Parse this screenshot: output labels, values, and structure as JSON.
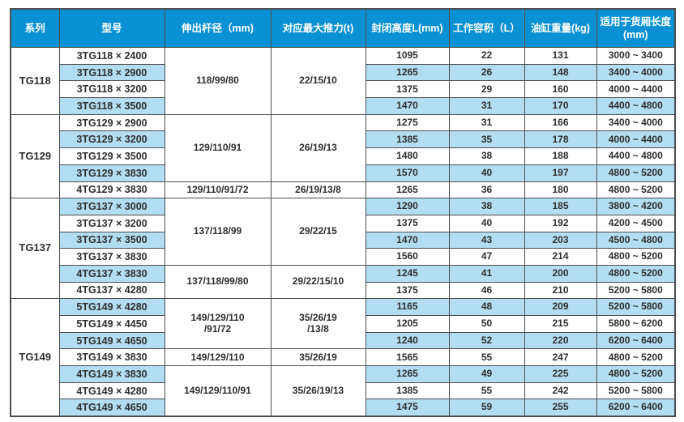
{
  "colors": {
    "page_bg": "#ffffff",
    "header_bg": "#0a91d4",
    "header_text": "#ffffff",
    "stripe_bg": "#b2ddf2",
    "row_bg": "#ffffff",
    "border": "#4e4e4e",
    "cell_text": "#2f2f2f"
  },
  "table": {
    "columns": [
      {
        "key": "series",
        "label": "系列"
      },
      {
        "key": "model",
        "label": "型号"
      },
      {
        "key": "rod",
        "label": "伸出杆径（mm)"
      },
      {
        "key": "thrust",
        "label": "对应最大推力(t)"
      },
      {
        "key": "height",
        "label": "封闭高度L(mm)"
      },
      {
        "key": "volume",
        "label": "工作容积（L）"
      },
      {
        "key": "weight",
        "label": "油缸重量(kg)"
      },
      {
        "key": "range",
        "label": "适用于货厢长度\n(mm)"
      }
    ],
    "rows": [
      [
        {
          "col": "series",
          "text": "TG118",
          "rowspan": 4
        },
        {
          "col": "model",
          "text": "3TG118 × 2400"
        },
        {
          "col": "rod",
          "text": "118/99/80",
          "rowspan": 4
        },
        {
          "col": "thrust",
          "text": "22/15/10",
          "rowspan": 4
        },
        {
          "col": "height",
          "text": "1095"
        },
        {
          "col": "volume",
          "text": "22"
        },
        {
          "col": "weight",
          "text": "131"
        },
        {
          "col": "range",
          "text": "3000 ~ 3400"
        }
      ],
      [
        {
          "col": "model",
          "text": "3TG118 × 2900"
        },
        {
          "col": "height",
          "text": "1265"
        },
        {
          "col": "volume",
          "text": "26"
        },
        {
          "col": "weight",
          "text": "148"
        },
        {
          "col": "range",
          "text": "3400 ~ 4000"
        }
      ],
      [
        {
          "col": "model",
          "text": "3TG118 × 3200"
        },
        {
          "col": "height",
          "text": "1375"
        },
        {
          "col": "volume",
          "text": "29"
        },
        {
          "col": "weight",
          "text": "160"
        },
        {
          "col": "range",
          "text": "4000 ~ 4400"
        }
      ],
      [
        {
          "col": "model",
          "text": "3TG118 × 3500"
        },
        {
          "col": "height",
          "text": "1470"
        },
        {
          "col": "volume",
          "text": "31"
        },
        {
          "col": "weight",
          "text": "170"
        },
        {
          "col": "range",
          "text": "4400 ~ 4800"
        }
      ],
      [
        {
          "col": "series",
          "text": "TG129",
          "rowspan": 5
        },
        {
          "col": "model",
          "text": "3TG129 × 2900"
        },
        {
          "col": "rod",
          "text": "129/110/91",
          "rowspan": 4
        },
        {
          "col": "thrust",
          "text": "26/19/13",
          "rowspan": 4
        },
        {
          "col": "height",
          "text": "1275"
        },
        {
          "col": "volume",
          "text": "31"
        },
        {
          "col": "weight",
          "text": "166"
        },
        {
          "col": "range",
          "text": "3400 ~ 4000"
        }
      ],
      [
        {
          "col": "model",
          "text": "3TG129 × 3200"
        },
        {
          "col": "height",
          "text": "1385"
        },
        {
          "col": "volume",
          "text": "35"
        },
        {
          "col": "weight",
          "text": "178"
        },
        {
          "col": "range",
          "text": "4000 ~ 4400"
        }
      ],
      [
        {
          "col": "model",
          "text": "3TG129 × 3500"
        },
        {
          "col": "height",
          "text": "1480"
        },
        {
          "col": "volume",
          "text": "38"
        },
        {
          "col": "weight",
          "text": "188"
        },
        {
          "col": "range",
          "text": "4400 ~ 4800"
        }
      ],
      [
        {
          "col": "model",
          "text": "3TG129 × 3830"
        },
        {
          "col": "height",
          "text": "1570"
        },
        {
          "col": "volume",
          "text": "40"
        },
        {
          "col": "weight",
          "text": "197"
        },
        {
          "col": "range",
          "text": "4800 ~ 5200"
        }
      ],
      [
        {
          "col": "model",
          "text": "4TG129 × 3830"
        },
        {
          "col": "rod",
          "text": "129/110/91/72"
        },
        {
          "col": "thrust",
          "text": "26/19/13/8"
        },
        {
          "col": "height",
          "text": "1265"
        },
        {
          "col": "volume",
          "text": "36"
        },
        {
          "col": "weight",
          "text": "180"
        },
        {
          "col": "range",
          "text": "4800 ~ 5200"
        }
      ],
      [
        {
          "col": "series",
          "text": "TG137",
          "rowspan": 6
        },
        {
          "col": "model",
          "text": "3TG137 × 3000"
        },
        {
          "col": "rod",
          "text": "137/118/99",
          "rowspan": 4
        },
        {
          "col": "thrust",
          "text": "29/22/15",
          "rowspan": 4
        },
        {
          "col": "height",
          "text": "1290"
        },
        {
          "col": "volume",
          "text": "38"
        },
        {
          "col": "weight",
          "text": "185"
        },
        {
          "col": "range",
          "text": "3800 ~ 4200"
        }
      ],
      [
        {
          "col": "model",
          "text": "3TG137 × 3200"
        },
        {
          "col": "height",
          "text": "1375"
        },
        {
          "col": "volume",
          "text": "40"
        },
        {
          "col": "weight",
          "text": "192"
        },
        {
          "col": "range",
          "text": "4200 ~ 4500"
        }
      ],
      [
        {
          "col": "model",
          "text": "3TG137 × 3500"
        },
        {
          "col": "height",
          "text": "1470"
        },
        {
          "col": "volume",
          "text": "43"
        },
        {
          "col": "weight",
          "text": "203"
        },
        {
          "col": "range",
          "text": "4500 ~ 4800"
        }
      ],
      [
        {
          "col": "model",
          "text": "3TG137 × 3830"
        },
        {
          "col": "height",
          "text": "1560"
        },
        {
          "col": "volume",
          "text": "47"
        },
        {
          "col": "weight",
          "text": "214"
        },
        {
          "col": "range",
          "text": "4800 ~ 5200"
        }
      ],
      [
        {
          "col": "model",
          "text": "4TG137 × 3830"
        },
        {
          "col": "rod",
          "text": "137/118/99/80",
          "rowspan": 2
        },
        {
          "col": "thrust",
          "text": "29/22/15/10",
          "rowspan": 2
        },
        {
          "col": "height",
          "text": "1245"
        },
        {
          "col": "volume",
          "text": "41"
        },
        {
          "col": "weight",
          "text": "200"
        },
        {
          "col": "range",
          "text": "4800 ~ 5200"
        }
      ],
      [
        {
          "col": "model",
          "text": "4TG137 × 4280"
        },
        {
          "col": "height",
          "text": "1375"
        },
        {
          "col": "volume",
          "text": "46"
        },
        {
          "col": "weight",
          "text": "210"
        },
        {
          "col": "range",
          "text": "5200 ~ 5800"
        }
      ],
      [
        {
          "col": "series",
          "text": "TG149",
          "rowspan": 7
        },
        {
          "col": "model",
          "text": "5TG149 × 4280"
        },
        {
          "col": "rod",
          "text": "149/129/110\n/91/72",
          "rowspan": 3
        },
        {
          "col": "thrust",
          "text": "35/26/19\n/13/8",
          "rowspan": 3
        },
        {
          "col": "height",
          "text": "1165"
        },
        {
          "col": "volume",
          "text": "48"
        },
        {
          "col": "weight",
          "text": "209"
        },
        {
          "col": "range",
          "text": "5200 ~ 5800"
        }
      ],
      [
        {
          "col": "model",
          "text": "5TG149 × 4450"
        },
        {
          "col": "height",
          "text": "1205"
        },
        {
          "col": "volume",
          "text": "50"
        },
        {
          "col": "weight",
          "text": "215"
        },
        {
          "col": "range",
          "text": "5800 ~ 6200"
        }
      ],
      [
        {
          "col": "model",
          "text": "5TG149 × 4650"
        },
        {
          "col": "height",
          "text": "1240"
        },
        {
          "col": "volume",
          "text": "52"
        },
        {
          "col": "weight",
          "text": "220"
        },
        {
          "col": "range",
          "text": "6200 ~ 6400"
        }
      ],
      [
        {
          "col": "model",
          "text": "3TG149 × 3830"
        },
        {
          "col": "rod",
          "text": "149/129/110"
        },
        {
          "col": "thrust",
          "text": "35/26/19"
        },
        {
          "col": "height",
          "text": "1565"
        },
        {
          "col": "volume",
          "text": "55"
        },
        {
          "col": "weight",
          "text": "247"
        },
        {
          "col": "range",
          "text": "4800 ~ 5200"
        }
      ],
      [
        {
          "col": "model",
          "text": "4TG149 × 3830"
        },
        {
          "col": "rod",
          "text": "149/129/110/91",
          "rowspan": 3
        },
        {
          "col": "thrust",
          "text": "35/26/19/13",
          "rowspan": 3
        },
        {
          "col": "height",
          "text": "1265"
        },
        {
          "col": "volume",
          "text": "49"
        },
        {
          "col": "weight",
          "text": "225"
        },
        {
          "col": "range",
          "text": "4800 ~ 5200"
        }
      ],
      [
        {
          "col": "model",
          "text": "4TG149 × 4280"
        },
        {
          "col": "height",
          "text": "1385"
        },
        {
          "col": "volume",
          "text": "55"
        },
        {
          "col": "weight",
          "text": "242"
        },
        {
          "col": "range",
          "text": "5200 ~ 5800"
        }
      ],
      [
        {
          "col": "model",
          "text": "4TG149 × 4650"
        },
        {
          "col": "height",
          "text": "1475"
        },
        {
          "col": "volume",
          "text": "59"
        },
        {
          "col": "weight",
          "text": "255"
        },
        {
          "col": "range",
          "text": "6200 ~ 6400"
        }
      ]
    ]
  }
}
